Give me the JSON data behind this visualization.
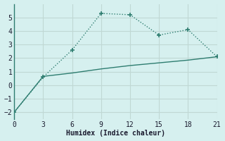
{
  "line1_x": [
    0,
    3,
    6,
    9,
    12,
    15,
    18,
    21
  ],
  "line1_y": [
    -2,
    0.6,
    2.6,
    5.3,
    5.2,
    3.7,
    4.1,
    2.1
  ],
  "line2_x": [
    0,
    3,
    6,
    9,
    12,
    15,
    18,
    21
  ],
  "line2_y": [
    -2,
    0.65,
    0.9,
    1.2,
    1.45,
    1.65,
    1.85,
    2.1
  ],
  "color": "#2e7d70",
  "xlabel": "Humidex (Indice chaleur)",
  "xlim": [
    0,
    21
  ],
  "ylim": [
    -2.5,
    6
  ],
  "xticks": [
    0,
    3,
    6,
    9,
    12,
    15,
    18,
    21
  ],
  "yticks": [
    -2,
    -1,
    0,
    1,
    2,
    3,
    4,
    5
  ],
  "bg_color": "#d6f0ef",
  "grid_color": "#c0d8d4"
}
